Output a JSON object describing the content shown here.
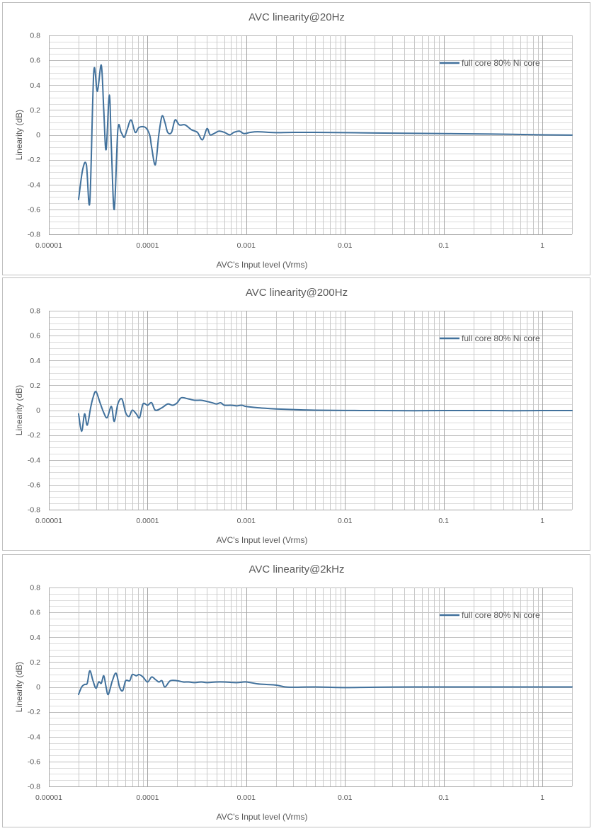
{
  "chart_data": [
    {
      "type": "line",
      "title": "AVC linearity@20Hz",
      "xlabel": "AVC's Input level (Vrms)",
      "ylabel": "Linearity (dB)",
      "x_scale": "log",
      "xlim": [
        1e-05,
        2
      ],
      "ylim": [
        -0.8,
        0.8
      ],
      "x_tick_labels": [
        "0.00001",
        "0.0001",
        "0.001",
        "0.01",
        "0.1",
        "1"
      ],
      "y_tick_labels": [
        "0.8",
        "0.6",
        "0.4",
        "0.2",
        "0",
        "-0.2",
        "-0.4",
        "-0.6",
        "-0.8"
      ],
      "grid": true,
      "legend_position": "top-right",
      "series": [
        {
          "name": "full core 80% Ni core",
          "color": "#41719c",
          "points": [
            [
              2e-05,
              -0.52
            ],
            [
              2.2e-05,
              -0.28
            ],
            [
              2.4e-05,
              -0.24
            ],
            [
              2.6e-05,
              -0.54
            ],
            [
              2.85e-05,
              0.5
            ],
            [
              3.1e-05,
              0.35
            ],
            [
              3.4e-05,
              0.56
            ],
            [
              3.6e-05,
              0.2
            ],
            [
              3.8e-05,
              -0.12
            ],
            [
              4.1e-05,
              0.32
            ],
            [
              4.3e-05,
              -0.1
            ],
            [
              4.6e-05,
              -0.6
            ],
            [
              5e-05,
              0.04
            ],
            [
              5.4e-05,
              0.02
            ],
            [
              5.8e-05,
              -0.02
            ],
            [
              6.2e-05,
              0.04
            ],
            [
              6.8e-05,
              0.12
            ],
            [
              7.5e-05,
              0.02
            ],
            [
              8.2e-05,
              0.06
            ],
            [
              9.5e-05,
              0.06
            ],
            [
              0.000105,
              0.0
            ],
            [
              0.00011,
              -0.1
            ],
            [
              0.00012,
              -0.24
            ],
            [
              0.00013,
              0.0
            ],
            [
              0.00014,
              0.15
            ],
            [
              0.00015,
              0.1
            ],
            [
              0.00016,
              0.02
            ],
            [
              0.000175,
              0.02
            ],
            [
              0.00019,
              0.12
            ],
            [
              0.00021,
              0.08
            ],
            [
              0.00024,
              0.08
            ],
            [
              0.00028,
              0.04
            ],
            [
              0.00032,
              0.02
            ],
            [
              0.00036,
              -0.04
            ],
            [
              0.0004,
              0.05
            ],
            [
              0.00043,
              0.0
            ],
            [
              0.00047,
              0.01
            ],
            [
              0.00053,
              0.03
            ],
            [
              0.0006,
              0.02
            ],
            [
              0.00068,
              0.0
            ],
            [
              0.00075,
              0.02
            ],
            [
              0.00085,
              0.03
            ],
            [
              0.00095,
              0.01
            ],
            [
              0.0011,
              0.02
            ],
            [
              0.0013,
              0.025
            ],
            [
              0.0017,
              0.02
            ],
            [
              0.002,
              0.018
            ],
            [
              0.003,
              0.02
            ],
            [
              0.005,
              0.02
            ],
            [
              0.01,
              0.018
            ],
            [
              0.02,
              0.015
            ],
            [
              0.05,
              0.012
            ],
            [
              0.1,
              0.01
            ],
            [
              0.2,
              0.008
            ],
            [
              0.5,
              0.004
            ],
            [
              1,
              0.0
            ],
            [
              2,
              -0.002
            ]
          ]
        }
      ]
    },
    {
      "type": "line",
      "title": "AVC linearity@200Hz",
      "xlabel": "AVC's Input level (Vrms)",
      "ylabel": "Linearity (dB)",
      "x_scale": "log",
      "xlim": [
        1e-05,
        2
      ],
      "ylim": [
        -0.8,
        0.8
      ],
      "x_tick_labels": [
        "0.00001",
        "0.0001",
        "0.001",
        "0.01",
        "0.1",
        "1"
      ],
      "y_tick_labels": [
        "0.8",
        "0.6",
        "0.4",
        "0.2",
        "0",
        "-0.2",
        "-0.4",
        "-0.6",
        "-0.8"
      ],
      "grid": true,
      "legend_position": "top-right",
      "series": [
        {
          "name": "full core 80% Ni core",
          "color": "#41719c",
          "points": [
            [
              2e-05,
              -0.03
            ],
            [
              2.15e-05,
              -0.17
            ],
            [
              2.3e-05,
              -0.03
            ],
            [
              2.45e-05,
              -0.12
            ],
            [
              2.65e-05,
              0.02
            ],
            [
              2.8e-05,
              0.1
            ],
            [
              3e-05,
              0.15
            ],
            [
              3.3e-05,
              0.06
            ],
            [
              3.6e-05,
              -0.02
            ],
            [
              3.9e-05,
              -0.06
            ],
            [
              4.3e-05,
              0.03
            ],
            [
              4.6e-05,
              -0.09
            ],
            [
              5e-05,
              0.05
            ],
            [
              5.5e-05,
              0.09
            ],
            [
              6e-05,
              -0.02
            ],
            [
              6.5e-05,
              -0.05
            ],
            [
              7e-05,
              0.0
            ],
            [
              7.7e-05,
              -0.03
            ],
            [
              8.3e-05,
              -0.06
            ],
            [
              9e-05,
              0.05
            ],
            [
              0.0001,
              0.04
            ],
            [
              0.00011,
              0.06
            ],
            [
              0.00012,
              0.0
            ],
            [
              0.00014,
              0.02
            ],
            [
              0.00016,
              0.05
            ],
            [
              0.00018,
              0.04
            ],
            [
              0.0002,
              0.06
            ],
            [
              0.00022,
              0.1
            ],
            [
              0.00026,
              0.09
            ],
            [
              0.0003,
              0.08
            ],
            [
              0.00035,
              0.08
            ],
            [
              0.0004,
              0.07
            ],
            [
              0.00045,
              0.06
            ],
            [
              0.0005,
              0.05
            ],
            [
              0.00055,
              0.06
            ],
            [
              0.0006,
              0.04
            ],
            [
              0.0007,
              0.04
            ],
            [
              0.0008,
              0.035
            ],
            [
              0.0009,
              0.04
            ],
            [
              0.001,
              0.03
            ],
            [
              0.0013,
              0.02
            ],
            [
              0.0016,
              0.015
            ],
            [
              0.002,
              0.01
            ],
            [
              0.003,
              0.005
            ],
            [
              0.005,
              0.0
            ],
            [
              0.01,
              -0.002
            ],
            [
              0.02,
              -0.003
            ],
            [
              0.05,
              -0.004
            ],
            [
              0.1,
              -0.003
            ],
            [
              0.3,
              -0.003
            ],
            [
              0.5,
              -0.004
            ],
            [
              1,
              -0.003
            ],
            [
              2,
              -0.003
            ]
          ]
        }
      ]
    },
    {
      "type": "line",
      "title": "AVC linearity@2kHz",
      "xlabel": "AVC's Input level (Vrms)",
      "ylabel": "Linearity (dB)",
      "x_scale": "log",
      "xlim": [
        1e-05,
        2
      ],
      "ylim": [
        -0.8,
        0.8
      ],
      "x_tick_labels": [
        "0.00001",
        "0.0001",
        "0.001",
        "0.01",
        "0.1",
        "1"
      ],
      "y_tick_labels": [
        "0.8",
        "0.6",
        "0.4",
        "0.2",
        "0",
        "-0.2",
        "-0.4",
        "-0.6",
        "-0.8"
      ],
      "grid": true,
      "legend_position": "top-right",
      "series": [
        {
          "name": "full core 80% Ni core",
          "color": "#41719c",
          "points": [
            [
              2e-05,
              -0.06
            ],
            [
              2.15e-05,
              0.0
            ],
            [
              2.3e-05,
              0.02
            ],
            [
              2.45e-05,
              0.03
            ],
            [
              2.6e-05,
              0.13
            ],
            [
              2.8e-05,
              0.05
            ],
            [
              3e-05,
              -0.01
            ],
            [
              3.2e-05,
              0.04
            ],
            [
              3.4e-05,
              0.03
            ],
            [
              3.6e-05,
              0.09
            ],
            [
              3.8e-05,
              0.0
            ],
            [
              4e-05,
              -0.06
            ],
            [
              4.4e-05,
              0.05
            ],
            [
              4.8e-05,
              0.11
            ],
            [
              5.2e-05,
              0.0
            ],
            [
              5.6e-05,
              -0.03
            ],
            [
              6e-05,
              0.05
            ],
            [
              6.6e-05,
              0.05
            ],
            [
              7e-05,
              0.1
            ],
            [
              7.7e-05,
              0.09
            ],
            [
              8.2e-05,
              0.1
            ],
            [
              9e-05,
              0.08
            ],
            [
              0.0001,
              0.04
            ],
            [
              0.00011,
              0.08
            ],
            [
              0.00012,
              0.06
            ],
            [
              0.00013,
              0.04
            ],
            [
              0.00014,
              0.05
            ],
            [
              0.00015,
              0.0
            ],
            [
              0.00017,
              0.05
            ],
            [
              0.0002,
              0.05
            ],
            [
              0.00023,
              0.04
            ],
            [
              0.00026,
              0.04
            ],
            [
              0.0003,
              0.035
            ],
            [
              0.00035,
              0.04
            ],
            [
              0.0004,
              0.035
            ],
            [
              0.0005,
              0.04
            ],
            [
              0.0006,
              0.04
            ],
            [
              0.0008,
              0.035
            ],
            [
              0.001,
              0.04
            ],
            [
              0.0013,
              0.025
            ],
            [
              0.0016,
              0.02
            ],
            [
              0.002,
              0.015
            ],
            [
              0.0025,
              0.0
            ],
            [
              0.003,
              -0.002
            ],
            [
              0.005,
              0.0
            ],
            [
              0.01,
              -0.005
            ],
            [
              0.02,
              -0.002
            ],
            [
              0.05,
              0.0
            ],
            [
              0.1,
              0.0
            ],
            [
              0.2,
              0.0
            ],
            [
              0.5,
              0.0
            ],
            [
              1,
              0.0
            ],
            [
              2,
              0.0
            ]
          ]
        }
      ]
    }
  ]
}
